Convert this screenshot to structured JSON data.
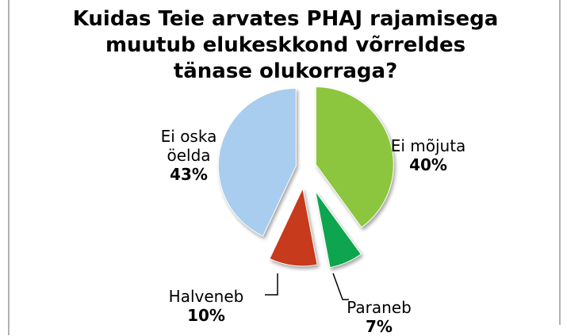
{
  "chart_data": {
    "type": "pie",
    "title": "Kuidas Teie arvates PHAJ rajamisega muutub elukeskkond võrreldes tänase olukorraga?",
    "categories": [
      "Ei mõjuta",
      "Paraneb",
      "Halveneb",
      "Ei oska öelda"
    ],
    "values": [
      40,
      7,
      10,
      43
    ],
    "value_labels": [
      "40%",
      "7%",
      "10%",
      "43%"
    ],
    "colors": [
      "#8cc63e",
      "#0ea54f",
      "#c73a1c",
      "#a8cdee"
    ]
  }
}
